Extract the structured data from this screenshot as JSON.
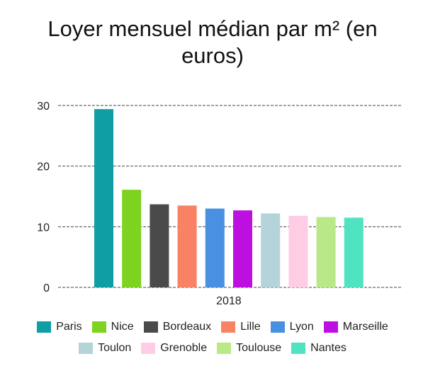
{
  "chart_data": {
    "type": "bar",
    "title": "Loyer mensuel médian par m² (en euros)",
    "title_lines": [
      "Loyer mensuel médian par m² (en",
      "euros)"
    ],
    "categories": [
      "2018"
    ],
    "ylim": [
      0,
      30
    ],
    "yticks": [
      0,
      10,
      20,
      30
    ],
    "grid": true,
    "legend_position": "bottom",
    "series": [
      {
        "name": "Paris",
        "color": "#0e9ea4",
        "values": [
          29.4
        ]
      },
      {
        "name": "Nice",
        "color": "#7ed321",
        "values": [
          16.1
        ]
      },
      {
        "name": "Bordeaux",
        "color": "#4a4a4a",
        "values": [
          13.7
        ]
      },
      {
        "name": "Lille",
        "color": "#fa8264",
        "values": [
          13.5
        ]
      },
      {
        "name": "Lyon",
        "color": "#4a90e2",
        "values": [
          13.0
        ]
      },
      {
        "name": "Marseille",
        "color": "#bd10e0",
        "values": [
          12.7
        ]
      },
      {
        "name": "Toulon",
        "color": "#b5d4da",
        "values": [
          12.2
        ]
      },
      {
        "name": "Grenoble",
        "color": "#ffcce6",
        "values": [
          11.8
        ]
      },
      {
        "name": "Toulouse",
        "color": "#b8e986",
        "values": [
          11.6
        ]
      },
      {
        "name": "Nantes",
        "color": "#50e3c2",
        "values": [
          11.5
        ]
      }
    ]
  }
}
